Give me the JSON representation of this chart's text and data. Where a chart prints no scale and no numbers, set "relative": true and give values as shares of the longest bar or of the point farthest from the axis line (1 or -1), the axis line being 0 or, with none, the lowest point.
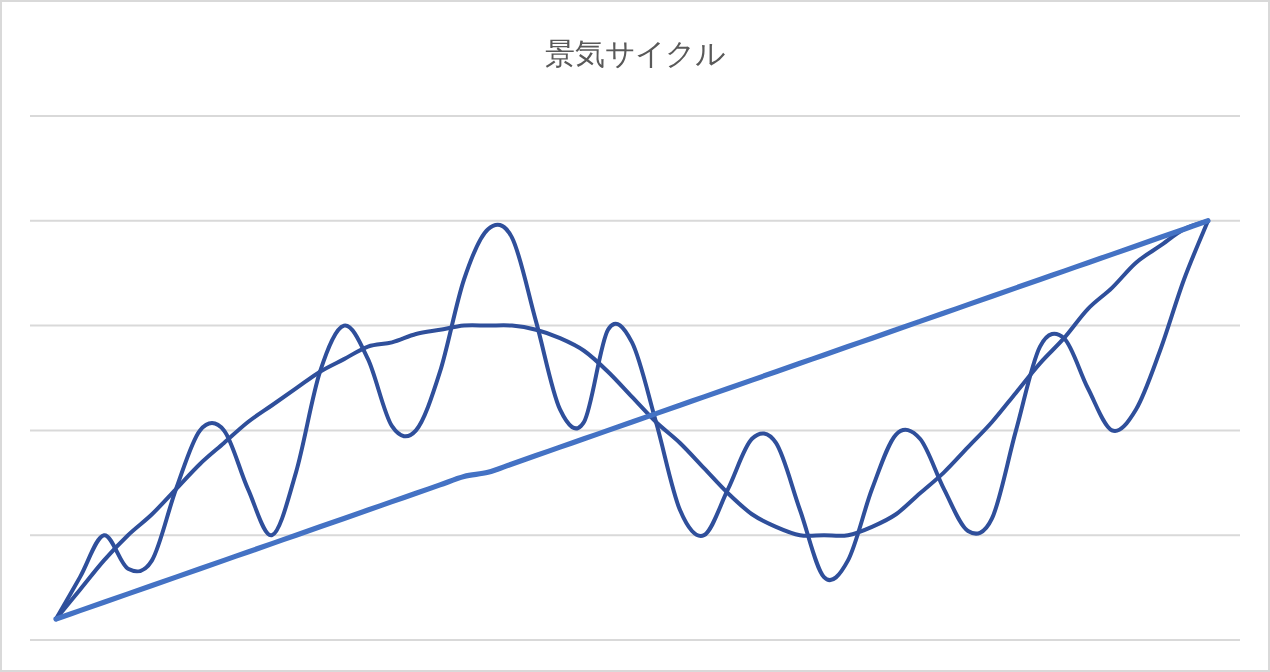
{
  "chart_data": {
    "type": "line",
    "title": "景気サイクル",
    "relative": true,
    "grid": true,
    "categories": [
      null,
      null,
      null,
      null,
      null,
      null,
      null,
      null,
      null,
      null,
      null,
      null,
      null,
      null,
      null,
      null,
      null,
      null,
      null,
      null,
      null,
      null,
      null,
      null,
      null,
      null,
      null,
      null,
      null,
      null,
      null,
      null,
      null,
      null,
      null,
      null,
      null,
      null,
      null,
      null,
      null,
      null,
      null,
      null,
      null,
      null,
      null,
      null,
      null
    ],
    "series": [
      {
        "color": "#2f4f9b",
        "values": [
          0.05,
          0.15,
          0.25,
          0.17,
          0.19,
          0.36,
          0.5,
          0.5,
          0.36,
          0.25,
          0.4,
          0.64,
          0.75,
          0.67,
          0.51,
          0.5,
          0.64,
          0.86,
          0.98,
          0.96,
          0.76,
          0.55,
          0.52,
          0.74,
          0.71,
          0.52,
          0.31,
          0.25,
          0.36,
          0.48,
          0.47,
          0.31,
          0.15,
          0.19,
          0.36,
          0.49,
          0.48,
          0.36,
          0.26,
          0.29,
          0.5,
          0.7,
          0.72,
          0.6,
          0.5,
          0.55,
          0.69,
          0.86,
          1
        ]
      },
      {
        "color": "#2f4f9b",
        "values": [
          0.05,
          0.12,
          0.19,
          0.25,
          0.3,
          0.36,
          0.42,
          0.47,
          0.52,
          0.56,
          0.6,
          0.64,
          0.67,
          0.7,
          0.71,
          0.73,
          0.74,
          0.75,
          0.75,
          0.75,
          0.74,
          0.72,
          0.69,
          0.64,
          0.58,
          0.52,
          0.47,
          0.41,
          0.35,
          0.3,
          0.27,
          0.25,
          0.25,
          0.25,
          0.27,
          0.3,
          0.35,
          0.4,
          0.46,
          0.52,
          0.59,
          0.66,
          0.72,
          0.79,
          0.84,
          0.9,
          0.94,
          0.98,
          1
        ]
      },
      {
        "color": "#4472c4",
        "values": [
          0.05,
          0.07,
          0.09,
          0.11,
          0.13,
          0.15,
          0.17,
          0.19,
          0.21,
          0.23,
          0.25,
          0.27,
          0.29,
          0.31,
          0.33,
          0.35,
          0.37,
          0.39,
          0.4,
          0.42,
          0.44,
          0.46,
          0.48,
          0.5,
          0.52,
          0.54,
          0.56,
          0.58,
          0.6,
          0.62,
          0.64,
          0.66,
          0.68,
          0.7,
          0.72,
          0.74,
          0.76,
          0.78,
          0.8,
          0.82,
          0.84,
          0.86,
          0.88,
          0.9,
          0.92,
          0.94,
          0.96,
          0.98,
          1
        ]
      }
    ]
  }
}
